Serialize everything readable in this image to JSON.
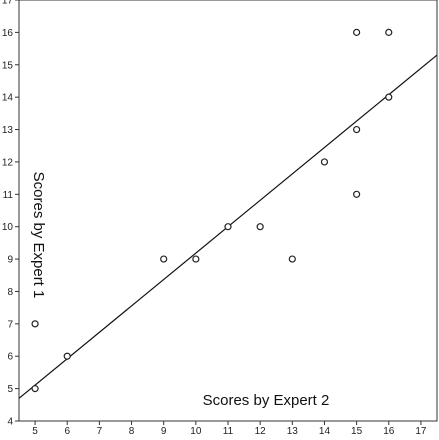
{
  "chart_data": {
    "type": "scatter",
    "xlabel": "Scores by Expert 2",
    "ylabel": "Scores by Expert 1",
    "xlim": [
      4.5,
      17.5
    ],
    "ylim": [
      4,
      17
    ],
    "x_ticks": [
      5,
      6,
      7,
      8,
      9,
      10,
      11,
      12,
      13,
      14,
      15,
      16,
      17
    ],
    "y_ticks": [
      4,
      5,
      6,
      7,
      8,
      9,
      10,
      11,
      12,
      13,
      14,
      15,
      16,
      17
    ],
    "grid": false,
    "legend": "none",
    "series": [
      {
        "points": [
          {
            "x": 5,
            "y": 5
          },
          {
            "x": 5,
            "y": 7
          },
          {
            "x": 6,
            "y": 6
          },
          {
            "x": 9,
            "y": 9
          },
          {
            "x": 10,
            "y": 9
          },
          {
            "x": 11,
            "y": 10
          },
          {
            "x": 12,
            "y": 10
          },
          {
            "x": 13,
            "y": 9
          },
          {
            "x": 14,
            "y": 12
          },
          {
            "x": 15,
            "y": 16
          },
          {
            "x": 15,
            "y": 13
          },
          {
            "x": 15,
            "y": 11
          },
          {
            "x": 16,
            "y": 16
          },
          {
            "x": 16,
            "y": 14
          }
        ]
      }
    ],
    "fit_line": {
      "x": [
        4.5,
        17.5
      ],
      "y": [
        4.7,
        15.3
      ]
    },
    "colors": {
      "marker": "#222222",
      "line": "#111111",
      "axis": "#333333"
    }
  }
}
